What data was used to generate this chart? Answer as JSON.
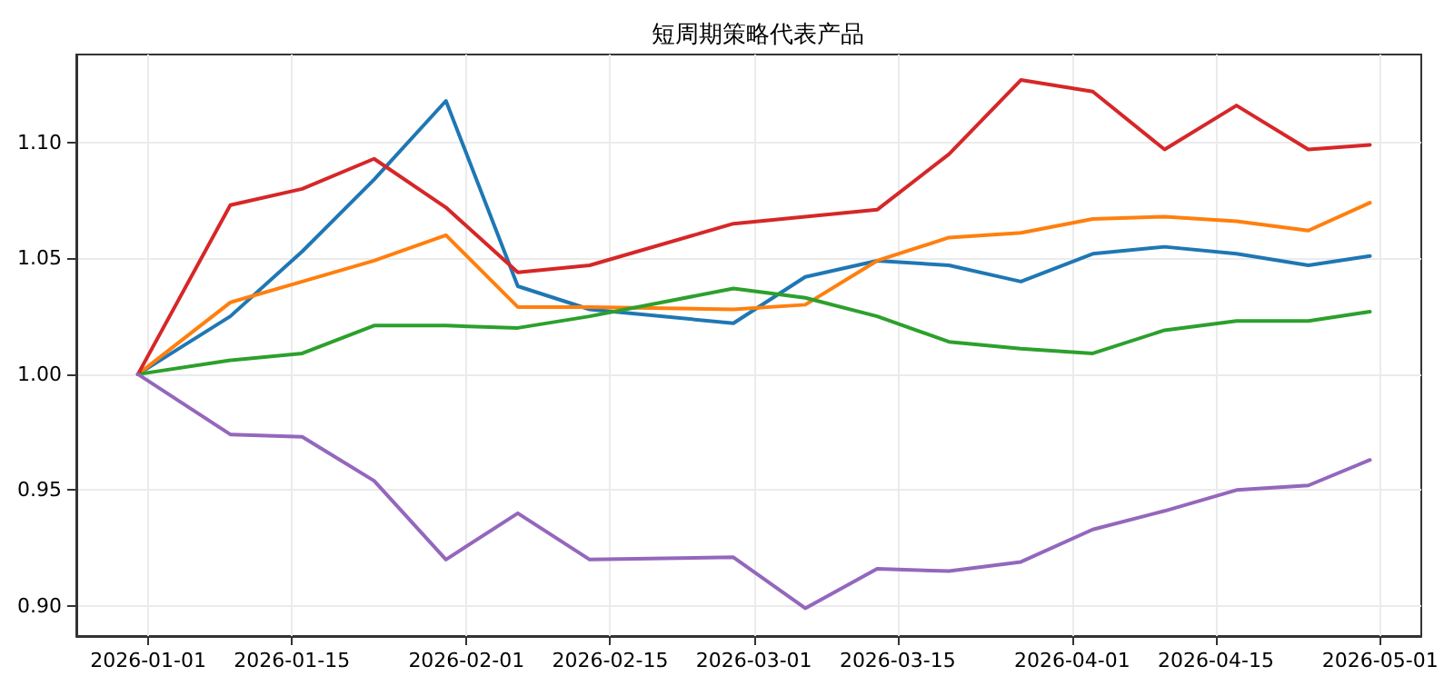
{
  "chart_data": {
    "type": "line",
    "title": "短周期策略代表产品",
    "x": [
      "2025-12-31",
      "2026-01-09",
      "2026-01-16",
      "2026-01-23",
      "2026-01-30",
      "2026-02-06",
      "2026-02-13",
      "2026-02-27",
      "2026-03-06",
      "2026-03-13",
      "2026-03-20",
      "2026-03-27",
      "2026-04-03",
      "2026-04-10",
      "2026-04-17",
      "2026-04-24",
      "2026-04-30"
    ],
    "series": [
      {
        "color": "#1f77b4",
        "values": [
          1.0,
          1.025,
          1.053,
          1.084,
          1.118,
          1.038,
          1.028,
          1.022,
          1.042,
          1.049,
          1.047,
          1.04,
          1.052,
          1.055,
          1.052,
          1.047,
          1.051
        ]
      },
      {
        "color": "#ff7f0e",
        "values": [
          1.0,
          1.031,
          1.04,
          1.049,
          1.06,
          1.029,
          1.029,
          1.028,
          1.03,
          1.049,
          1.059,
          1.061,
          1.067,
          1.068,
          1.066,
          1.062,
          1.074
        ]
      },
      {
        "color": "#2ca02c",
        "values": [
          1.0,
          1.006,
          1.009,
          1.021,
          1.021,
          1.02,
          1.025,
          1.037,
          1.033,
          1.025,
          1.014,
          1.011,
          1.009,
          1.019,
          1.023,
          1.023,
          1.027
        ]
      },
      {
        "color": "#d62728",
        "values": [
          1.0,
          1.073,
          1.08,
          1.093,
          1.072,
          1.044,
          1.047,
          1.065,
          1.068,
          1.071,
          1.095,
          1.127,
          1.122,
          1.097,
          1.116,
          1.097,
          1.099
        ]
      },
      {
        "color": "#9467bd",
        "values": [
          1.0,
          0.974,
          0.973,
          0.954,
          0.92,
          0.94,
          0.92,
          0.921,
          0.899,
          0.916,
          0.915,
          0.919,
          0.933,
          0.941,
          0.95,
          0.952,
          0.963
        ]
      }
    ],
    "xlim": [
      "2025-12-25",
      "2026-05-05"
    ],
    "xticks": [
      "2026-01-01",
      "2026-01-15",
      "2026-02-01",
      "2026-02-15",
      "2026-03-01",
      "2026-03-15",
      "2026-04-01",
      "2026-04-15",
      "2026-05-01"
    ],
    "ylim": [
      0.887,
      1.138
    ],
    "yticks": [
      {
        "value": 0.9,
        "label": "0.90"
      },
      {
        "value": 0.95,
        "label": "0.95"
      },
      {
        "value": 1.0,
        "label": "1.00"
      },
      {
        "value": 1.05,
        "label": "1.05"
      },
      {
        "value": 1.1,
        "label": "1.10"
      }
    ],
    "grid": true,
    "marker": "none",
    "line_style": "solid"
  }
}
